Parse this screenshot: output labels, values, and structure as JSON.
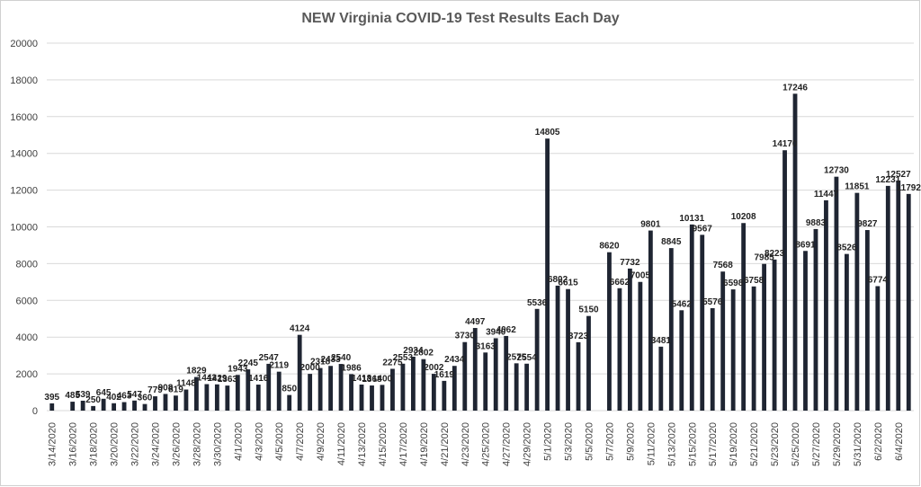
{
  "chart_data": {
    "type": "bar",
    "title": "NEW Virginia COVID-19 Test Results Each Day",
    "xlabel": "",
    "ylabel": "",
    "ylim": [
      0,
      20000
    ],
    "yticks": [
      "0",
      "2000",
      "4000",
      "6000",
      "8000",
      "10000",
      "12000",
      "14000",
      "16000",
      "18000",
      "20000"
    ],
    "grid": true,
    "x_tick_labels": [
      "3/14/2020",
      "3/16/2020",
      "3/18/2020",
      "3/20/2020",
      "3/22/2020",
      "3/24/2020",
      "3/26/2020",
      "3/28/2020",
      "3/30/2020",
      "4/1/2020",
      "4/3/2020",
      "4/5/2020",
      "4/7/2020",
      "4/9/2020",
      "4/11/2020",
      "4/13/2020",
      "4/15/2020",
      "4/17/2020",
      "4/19/2020",
      "4/21/2020",
      "4/23/2020",
      "4/25/2020",
      "4/27/2020",
      "4/29/2020",
      "5/1/2020",
      "5/3/2020",
      "5/5/2020",
      "5/7/2020",
      "5/9/2020",
      "5/11/2020",
      "5/13/2020",
      "5/15/2020",
      "5/17/2020",
      "5/19/2020",
      "5/21/2020",
      "5/23/2020",
      "5/25/2020",
      "5/27/2020",
      "5/29/2020",
      "5/31/2020",
      "6/2/2020",
      "6/4/2020"
    ],
    "values": [
      395,
      null,
      485,
      539,
      250,
      645,
      402,
      463,
      547,
      360,
      779,
      908,
      819,
      1148,
      1829,
      1442,
      1429,
      1363,
      1943,
      2245,
      1416,
      2547,
      2119,
      850,
      4124,
      2000,
      2318,
      2433,
      2540,
      1986,
      1418,
      1368,
      1400,
      2275,
      2553,
      2934,
      2802,
      2002,
      1619,
      2434,
      3730,
      4497,
      3163,
      3940,
      4062,
      2575,
      2554,
      5536,
      14805,
      6802,
      6615,
      3723,
      5150,
      null,
      8620,
      6662,
      7732,
      7005,
      9801,
      3481,
      8845,
      5462,
      10131,
      9567,
      5576,
      7568,
      6598,
      10208,
      6758,
      7985,
      8223,
      14170,
      17246,
      8691,
      9883,
      11447,
      12730,
      8526,
      11851,
      9827,
      6774,
      12231,
      12527,
      11792
    ],
    "data_labels": [
      "395",
      "",
      "485",
      "539",
      "250",
      "645",
      "402",
      "463",
      "547",
      "360",
      "779",
      "908",
      "819",
      "1148",
      "1829",
      "1442",
      "1429",
      "1363",
      "1943",
      "2245",
      "1416",
      "2547",
      "2119",
      "850",
      "4124",
      "2000",
      "2318",
      "2433",
      "2540",
      "1986",
      "1418",
      "1368",
      "1400",
      "2275",
      "2553",
      "2934",
      "2802",
      "2002",
      "1619",
      "2434",
      "3730",
      "4497",
      "3163",
      "3940",
      "4062",
      "2575",
      "2554",
      "5536",
      "14805",
      "6802",
      "6615",
      "3723",
      "5150",
      "",
      "8620",
      "6662",
      "7732",
      "7005",
      "9801",
      "3481",
      "8845",
      "5462",
      "10131",
      "9567",
      "5576",
      "7568",
      "6598",
      "10208",
      "6758",
      "7985",
      "8223",
      "14170",
      "17246",
      "8691",
      "9883",
      "11447",
      "12730",
      "8526",
      "11851",
      "9827",
      "6774",
      "12231",
      "12527",
      "11792"
    ],
    "colors": {
      "bar": "#1f2532",
      "grid": "#d9d9d9",
      "title": "#595959"
    }
  }
}
